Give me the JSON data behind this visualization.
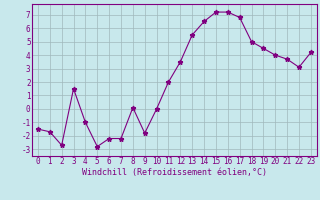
{
  "xlabel": "Windchill (Refroidissement éolien,°C)",
  "x_values": [
    0,
    1,
    2,
    3,
    4,
    5,
    6,
    7,
    8,
    9,
    10,
    11,
    12,
    13,
    14,
    15,
    16,
    17,
    18,
    19,
    20,
    21,
    22,
    23
  ],
  "y_values": [
    -1.5,
    -1.7,
    -2.7,
    1.5,
    -1.0,
    -2.8,
    -2.2,
    -2.2,
    0.1,
    -1.8,
    0.0,
    2.0,
    3.5,
    5.5,
    6.5,
    7.2,
    7.2,
    6.8,
    5.0,
    4.5,
    4.0,
    3.7,
    3.1,
    4.2
  ],
  "line_color": "#800080",
  "marker": "*",
  "bg_color": "#c8e8ec",
  "grid_color": "#a0b8bc",
  "ylim": [
    -3.5,
    7.8
  ],
  "yticks": [
    -3,
    -2,
    -1,
    0,
    1,
    2,
    3,
    4,
    5,
    6,
    7
  ],
  "xticks": [
    0,
    1,
    2,
    3,
    4,
    5,
    6,
    7,
    8,
    9,
    10,
    11,
    12,
    13,
    14,
    15,
    16,
    17,
    18,
    19,
    20,
    21,
    22,
    23
  ],
  "tick_color": "#800080",
  "label_color": "#800080",
  "spine_color": "#800080",
  "tick_fontsize": 5.5,
  "xlabel_fontsize": 6.0
}
